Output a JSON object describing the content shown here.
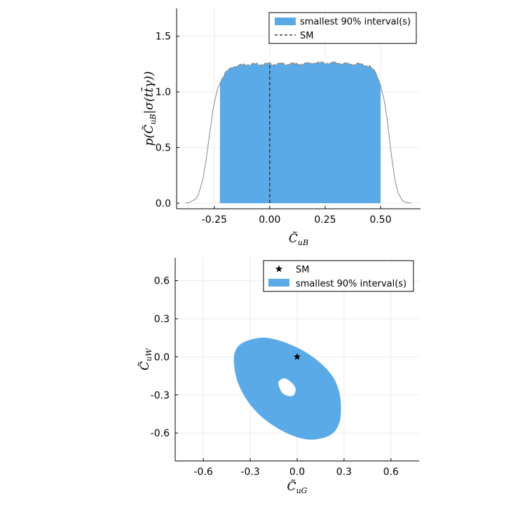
{
  "colors": {
    "fill": "#5aaae8",
    "hist_line": "#888888",
    "sm_line": "#404040",
    "grid": "#ebebeb",
    "axis": "#000000",
    "marker": "#000000"
  },
  "chart_data": [
    {
      "type": "area",
      "description_kind": "histogram with shaded interval",
      "xlim": [
        -0.42,
        0.68
      ],
      "ylim": [
        -0.05,
        1.75
      ],
      "xticks": [
        -0.25,
        0.0,
        0.25,
        0.5
      ],
      "xtick_labels": [
        "-0.25",
        "0.00",
        "0.25",
        "0.50"
      ],
      "yticks": [
        0.0,
        0.5,
        1.0,
        1.5
      ],
      "ytick_labels": [
        "0.0",
        "0.5",
        "1.0",
        "1.5"
      ],
      "xlabel": {
        "main": "C̃",
        "sub": "uB"
      },
      "ylabel": {
        "text": "p(C̃",
        "sub": "uB",
        "rest": "|σ(tt̄γ))"
      },
      "grid": true,
      "legend_position": "top-right",
      "legend": [
        {
          "label": "smallest 90% interval(s)",
          "kind": "patch"
        },
        {
          "label": "SM",
          "kind": "dashed-line"
        }
      ],
      "sm_x": 0.0,
      "interval": [
        -0.225,
        0.5
      ],
      "density_x": [
        -0.38,
        -0.36,
        -0.34,
        -0.32,
        -0.3,
        -0.29,
        -0.28,
        -0.27,
        -0.26,
        -0.25,
        -0.24,
        -0.23,
        -0.22,
        -0.21,
        -0.2,
        -0.19,
        -0.18,
        -0.16,
        -0.14,
        -0.1,
        -0.05,
        0.0,
        0.05,
        0.1,
        0.15,
        0.2,
        0.25,
        0.3,
        0.35,
        0.4,
        0.43,
        0.45,
        0.46,
        0.47,
        0.48,
        0.49,
        0.5,
        0.51,
        0.52,
        0.53,
        0.54,
        0.55,
        0.56,
        0.57,
        0.58,
        0.6,
        0.62,
        0.64
      ],
      "density_y": [
        0.0,
        0.01,
        0.03,
        0.08,
        0.22,
        0.35,
        0.5,
        0.65,
        0.78,
        0.9,
        0.98,
        1.05,
        1.1,
        1.14,
        1.17,
        1.19,
        1.21,
        1.23,
        1.24,
        1.25,
        1.25,
        1.25,
        1.25,
        1.25,
        1.25,
        1.26,
        1.26,
        1.26,
        1.25,
        1.25,
        1.24,
        1.23,
        1.21,
        1.19,
        1.16,
        1.12,
        1.06,
        0.98,
        0.88,
        0.74,
        0.58,
        0.42,
        0.28,
        0.16,
        0.08,
        0.02,
        0.005,
        0.0
      ]
    },
    {
      "type": "scatter",
      "description_kind": "2D credible region",
      "xlim": [
        -0.78,
        0.78
      ],
      "ylim": [
        -0.82,
        0.78
      ],
      "xticks": [
        -0.6,
        -0.3,
        0.0,
        0.3,
        0.6
      ],
      "xtick_labels": [
        "-0.6",
        "-0.3",
        "0.0",
        "0.3",
        "0.6"
      ],
      "yticks": [
        -0.6,
        -0.3,
        0.0,
        0.3,
        0.6
      ],
      "ytick_labels": [
        "-0.6",
        "-0.3",
        "0.0",
        "0.3",
        "0.6"
      ],
      "xlabel": {
        "main": "C̃",
        "sub": "uG"
      },
      "ylabel": {
        "main": "C̃",
        "sub": "uW"
      },
      "grid": true,
      "legend_position": "top-right",
      "legend": [
        {
          "label": "SM",
          "kind": "star"
        },
        {
          "label": "smallest 90% interval(s)",
          "kind": "patch"
        }
      ],
      "sm_point": [
        0.0,
        0.0
      ],
      "region_outer": [
        [
          -0.24,
          0.15
        ],
        [
          -0.15,
          0.14
        ],
        [
          -0.05,
          0.1
        ],
        [
          0.05,
          0.04
        ],
        [
          0.15,
          -0.05
        ],
        [
          0.23,
          -0.16
        ],
        [
          0.27,
          -0.28
        ],
        [
          0.28,
          -0.4
        ],
        [
          0.27,
          -0.52
        ],
        [
          0.22,
          -0.61
        ],
        [
          0.12,
          -0.65
        ],
        [
          0.02,
          -0.64
        ],
        [
          -0.1,
          -0.58
        ],
        [
          -0.22,
          -0.48
        ],
        [
          -0.31,
          -0.36
        ],
        [
          -0.37,
          -0.23
        ],
        [
          -0.4,
          -0.1
        ],
        [
          -0.4,
          0.03
        ],
        [
          -0.35,
          0.11
        ]
      ],
      "region_hole": [
        [
          -0.09,
          -0.17
        ],
        [
          -0.06,
          -0.18
        ],
        [
          -0.03,
          -0.21
        ],
        [
          -0.01,
          -0.25
        ],
        [
          -0.02,
          -0.3
        ],
        [
          -0.05,
          -0.31
        ],
        [
          -0.09,
          -0.29
        ],
        [
          -0.11,
          -0.25
        ],
        [
          -0.12,
          -0.2
        ]
      ]
    }
  ]
}
